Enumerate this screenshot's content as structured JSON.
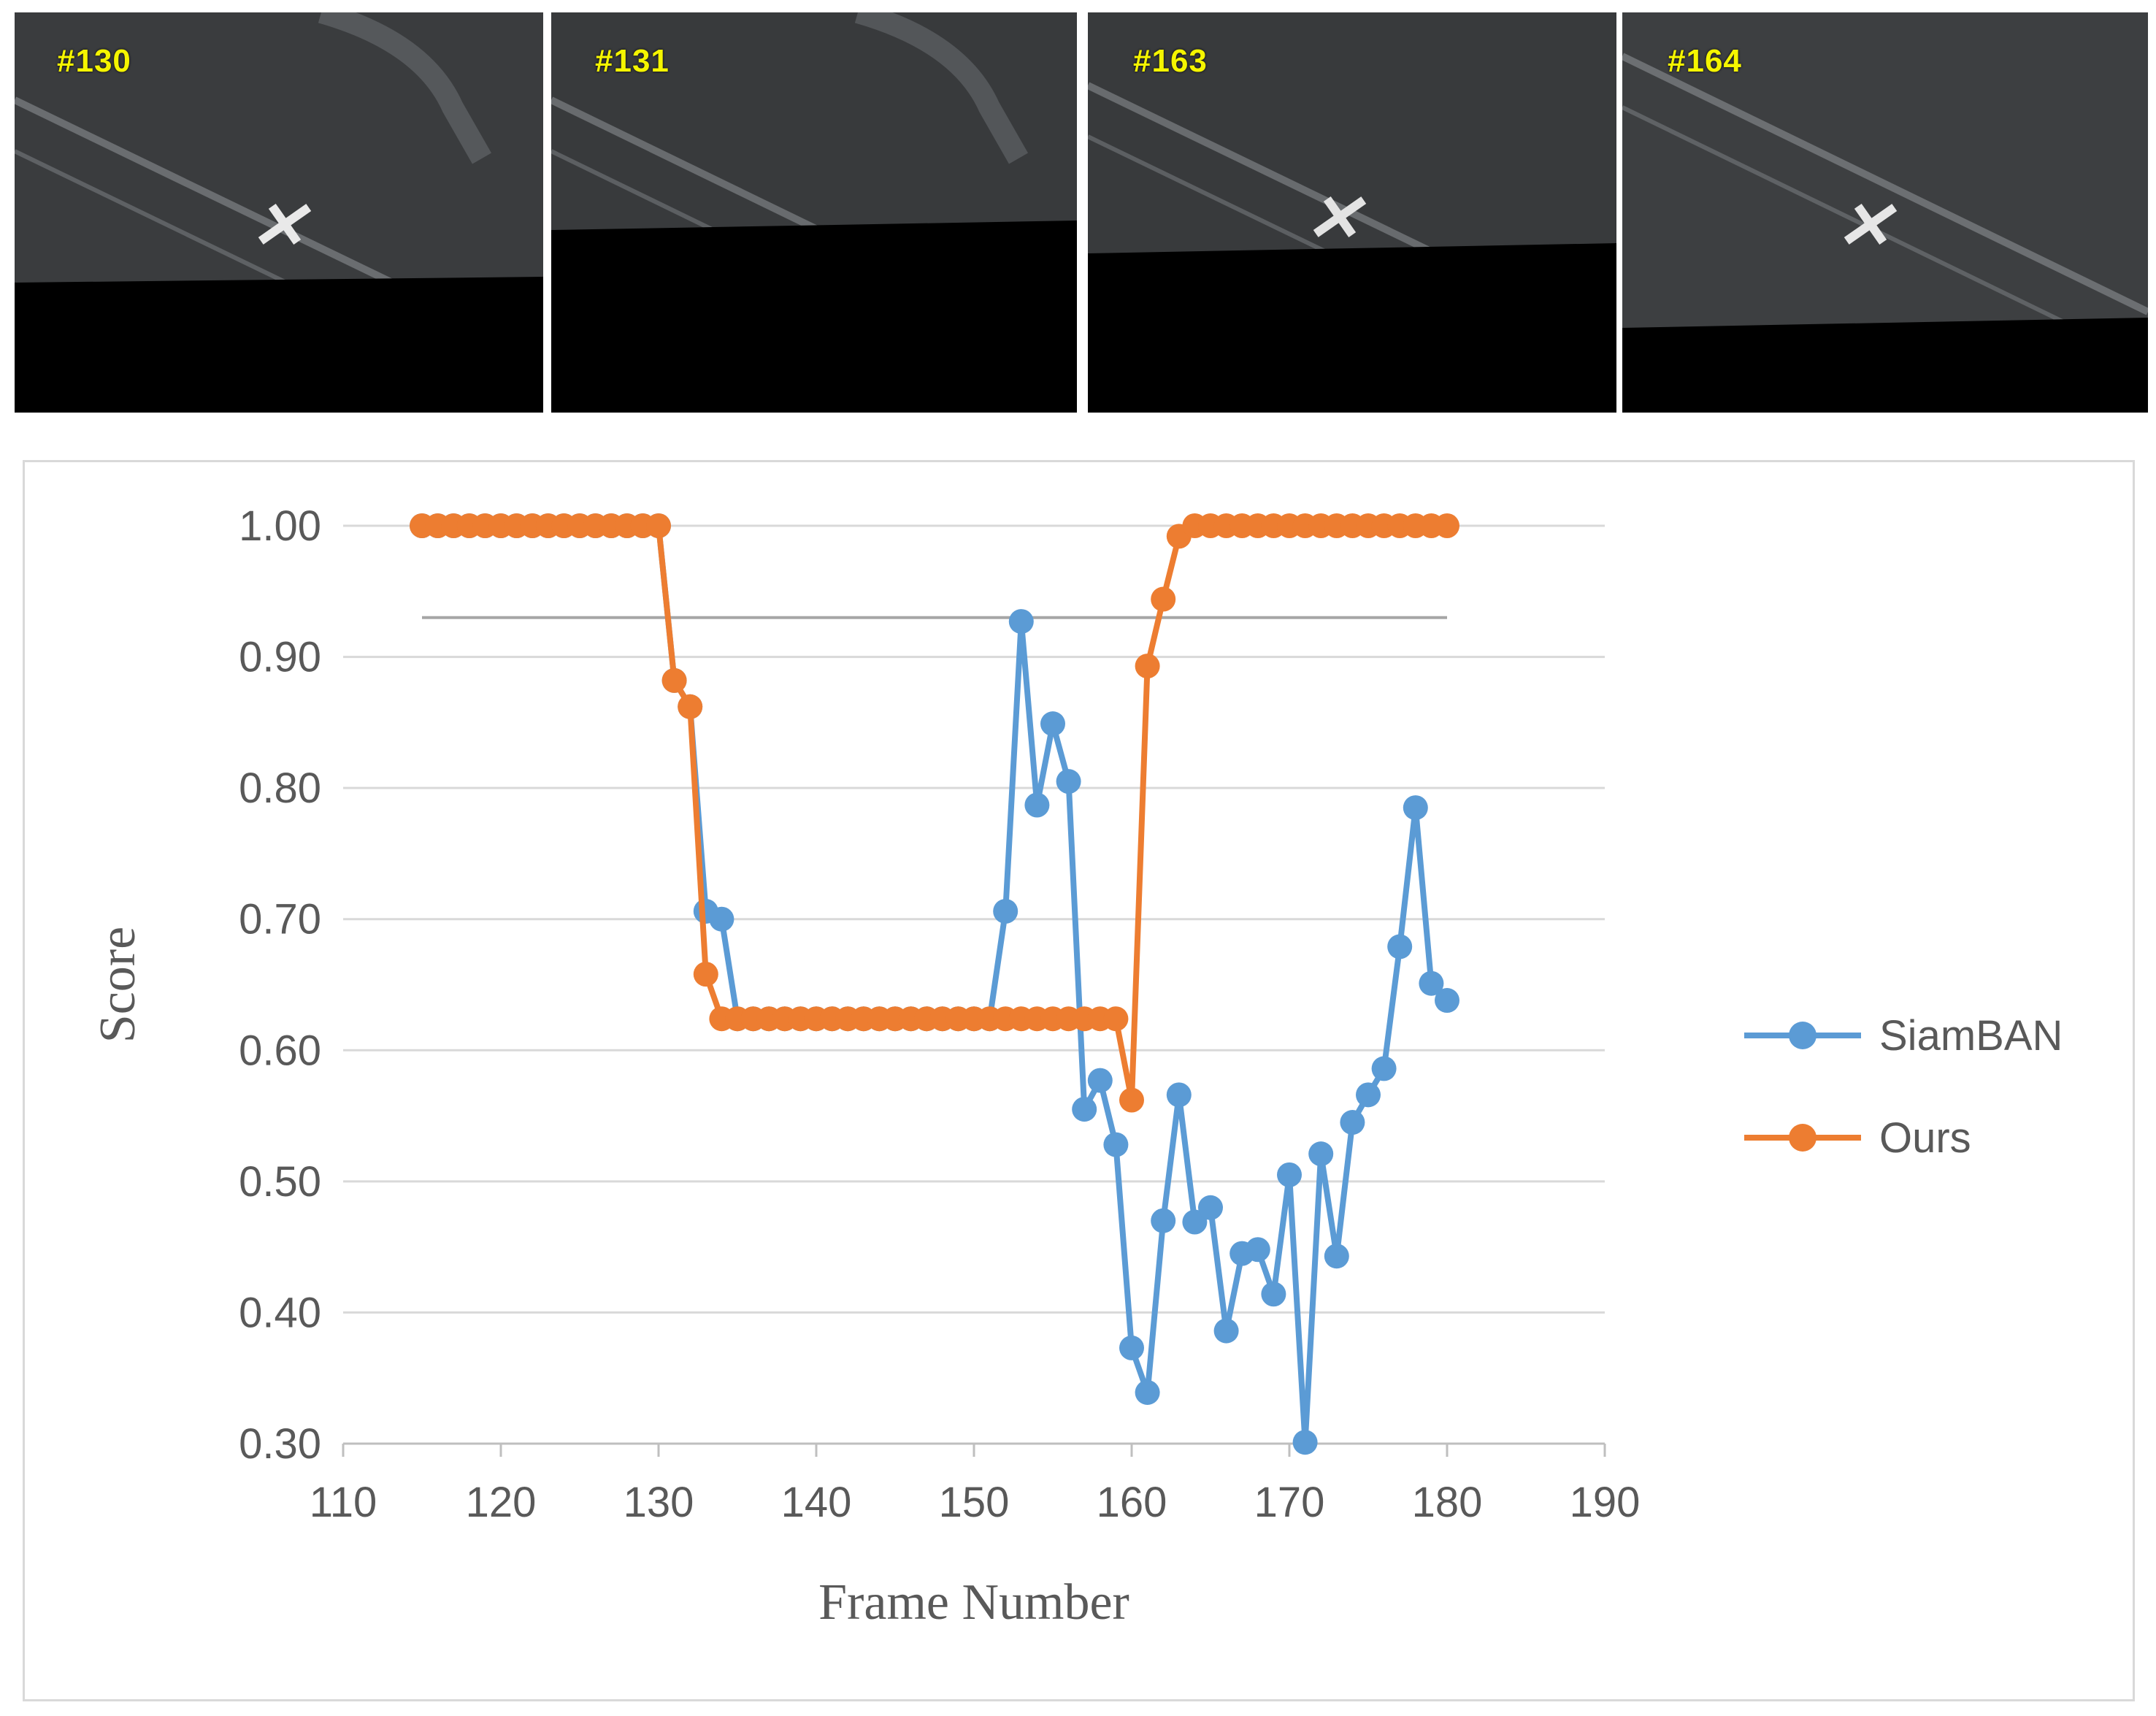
{
  "frames": [
    {
      "label": "#130"
    },
    {
      "label": "#131"
    },
    {
      "label": "#163"
    },
    {
      "label": "#164"
    }
  ],
  "chart_data": {
    "type": "line",
    "xlabel": "Frame Number",
    "ylabel": "Score",
    "xlim": [
      110,
      190
    ],
    "ylim": [
      0.3,
      1.0
    ],
    "x_ticks": [
      "110",
      "120",
      "130",
      "140",
      "150",
      "160",
      "170",
      "180",
      "190"
    ],
    "y_ticks": [
      "0.30",
      "0.40",
      "0.50",
      "0.60",
      "0.70",
      "0.80",
      "0.90",
      "1.00"
    ],
    "grid": true,
    "legend_position": "right",
    "threshold_line": {
      "y": 0.93,
      "x_range": [
        115,
        180
      ],
      "color": "#a6a6a6"
    },
    "series": [
      {
        "name": "SiamBAN",
        "color": "#5b9bd5",
        "points": [
          [
            115,
            1.0
          ],
          [
            116,
            1.0
          ],
          [
            117,
            1.0
          ],
          [
            118,
            1.0
          ],
          [
            119,
            1.0
          ],
          [
            120,
            1.0
          ],
          [
            121,
            1.0
          ],
          [
            122,
            1.0
          ],
          [
            123,
            1.0
          ],
          [
            124,
            1.0
          ],
          [
            125,
            1.0
          ],
          [
            126,
            1.0
          ],
          [
            127,
            1.0
          ],
          [
            128,
            1.0
          ],
          [
            129,
            1.0
          ],
          [
            130,
            1.0
          ],
          [
            131,
            0.882
          ],
          [
            132,
            0.862
          ],
          [
            133,
            0.706
          ],
          [
            134,
            0.7
          ],
          [
            135,
            0.624
          ],
          [
            136,
            0.624
          ],
          [
            137,
            0.624
          ],
          [
            138,
            0.624
          ],
          [
            139,
            0.624
          ],
          [
            140,
            0.624
          ],
          [
            141,
            0.624
          ],
          [
            142,
            0.624
          ],
          [
            143,
            0.624
          ],
          [
            144,
            0.624
          ],
          [
            145,
            0.624
          ],
          [
            146,
            0.624
          ],
          [
            147,
            0.624
          ],
          [
            148,
            0.624
          ],
          [
            149,
            0.624
          ],
          [
            150,
            0.624
          ],
          [
            151,
            0.624
          ],
          [
            152,
            0.706
          ],
          [
            153,
            0.927
          ],
          [
            154,
            0.787
          ],
          [
            155,
            0.849
          ],
          [
            156,
            0.805
          ],
          [
            157,
            0.555
          ],
          [
            158,
            0.577
          ],
          [
            159,
            0.528
          ],
          [
            160,
            0.373
          ],
          [
            161,
            0.339
          ],
          [
            162,
            0.47
          ],
          [
            163,
            0.566
          ],
          [
            164,
            0.469
          ],
          [
            165,
            0.48
          ],
          [
            166,
            0.386
          ],
          [
            167,
            0.445
          ],
          [
            168,
            0.448
          ],
          [
            169,
            0.414
          ],
          [
            170,
            0.505
          ],
          [
            171,
            0.301
          ],
          [
            172,
            0.521
          ],
          [
            173,
            0.443
          ],
          [
            174,
            0.545
          ],
          [
            175,
            0.566
          ],
          [
            176,
            0.586
          ],
          [
            177,
            0.679
          ],
          [
            178,
            0.785
          ],
          [
            179,
            0.651
          ],
          [
            180,
            0.638
          ]
        ]
      },
      {
        "name": "Ours",
        "color": "#ed7d31",
        "points": [
          [
            115,
            1.0
          ],
          [
            116,
            1.0
          ],
          [
            117,
            1.0
          ],
          [
            118,
            1.0
          ],
          [
            119,
            1.0
          ],
          [
            120,
            1.0
          ],
          [
            121,
            1.0
          ],
          [
            122,
            1.0
          ],
          [
            123,
            1.0
          ],
          [
            124,
            1.0
          ],
          [
            125,
            1.0
          ],
          [
            126,
            1.0
          ],
          [
            127,
            1.0
          ],
          [
            128,
            1.0
          ],
          [
            129,
            1.0
          ],
          [
            130,
            1.0
          ],
          [
            131,
            0.882
          ],
          [
            132,
            0.862
          ],
          [
            133,
            0.658
          ],
          [
            134,
            0.624
          ],
          [
            135,
            0.624
          ],
          [
            136,
            0.624
          ],
          [
            137,
            0.624
          ],
          [
            138,
            0.624
          ],
          [
            139,
            0.624
          ],
          [
            140,
            0.624
          ],
          [
            141,
            0.624
          ],
          [
            142,
            0.624
          ],
          [
            143,
            0.624
          ],
          [
            144,
            0.624
          ],
          [
            145,
            0.624
          ],
          [
            146,
            0.624
          ],
          [
            147,
            0.624
          ],
          [
            148,
            0.624
          ],
          [
            149,
            0.624
          ],
          [
            150,
            0.624
          ],
          [
            151,
            0.624
          ],
          [
            152,
            0.624
          ],
          [
            153,
            0.624
          ],
          [
            154,
            0.624
          ],
          [
            155,
            0.624
          ],
          [
            156,
            0.624
          ],
          [
            157,
            0.624
          ],
          [
            158,
            0.624
          ],
          [
            159,
            0.624
          ],
          [
            160,
            0.562
          ],
          [
            161,
            0.893
          ],
          [
            162,
            0.944
          ],
          [
            163,
            0.992
          ],
          [
            164,
            1.0
          ],
          [
            165,
            1.0
          ],
          [
            166,
            1.0
          ],
          [
            167,
            1.0
          ],
          [
            168,
            1.0
          ],
          [
            169,
            1.0
          ],
          [
            170,
            1.0
          ],
          [
            171,
            1.0
          ],
          [
            172,
            1.0
          ],
          [
            173,
            1.0
          ],
          [
            174,
            1.0
          ],
          [
            175,
            1.0
          ],
          [
            176,
            1.0
          ],
          [
            177,
            1.0
          ],
          [
            178,
            1.0
          ],
          [
            179,
            1.0
          ],
          [
            180,
            1.0
          ]
        ]
      }
    ]
  }
}
